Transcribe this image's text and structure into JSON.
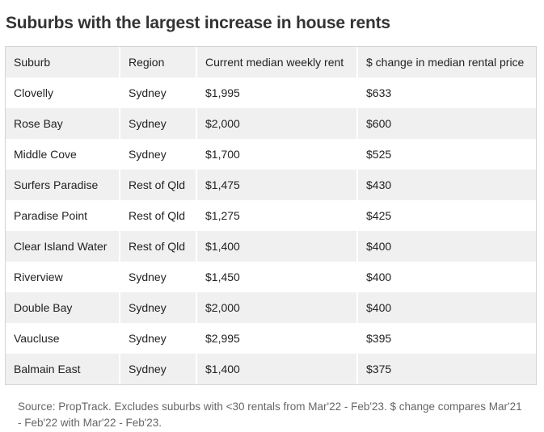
{
  "title": "Suburbs with the largest increase in house rents",
  "table": {
    "headers": [
      "Suburb",
      "Region",
      "Current median weekly rent",
      "$ change in median rental price"
    ],
    "rows": [
      [
        "Clovelly",
        "Sydney",
        "$1,995",
        "$633"
      ],
      [
        "Rose Bay",
        "Sydney",
        "$2,000",
        "$600"
      ],
      [
        "Middle Cove",
        "Sydney",
        "$1,700",
        "$525"
      ],
      [
        "Surfers Paradise",
        "Rest of Qld",
        "$1,475",
        "$430"
      ],
      [
        "Paradise Point",
        "Rest of Qld",
        "$1,275",
        "$425"
      ],
      [
        "Clear Island Water",
        "Rest of Qld",
        "$1,400",
        "$400"
      ],
      [
        "Riverview",
        "Sydney",
        "$1,450",
        "$400"
      ],
      [
        "Double Bay",
        "Sydney",
        "$2,000",
        "$400"
      ],
      [
        "Vaucluse",
        "Sydney",
        "$2,995",
        "$395"
      ],
      [
        "Balmain East",
        "Sydney",
        "$1,400",
        "$375"
      ]
    ]
  },
  "source": "Source: PropTrack. Excludes suburbs with <30 rentals from Mar'22 - Feb'23. $ change compares Mar'21 - Feb'22 with Mar'22 - Feb'23."
}
